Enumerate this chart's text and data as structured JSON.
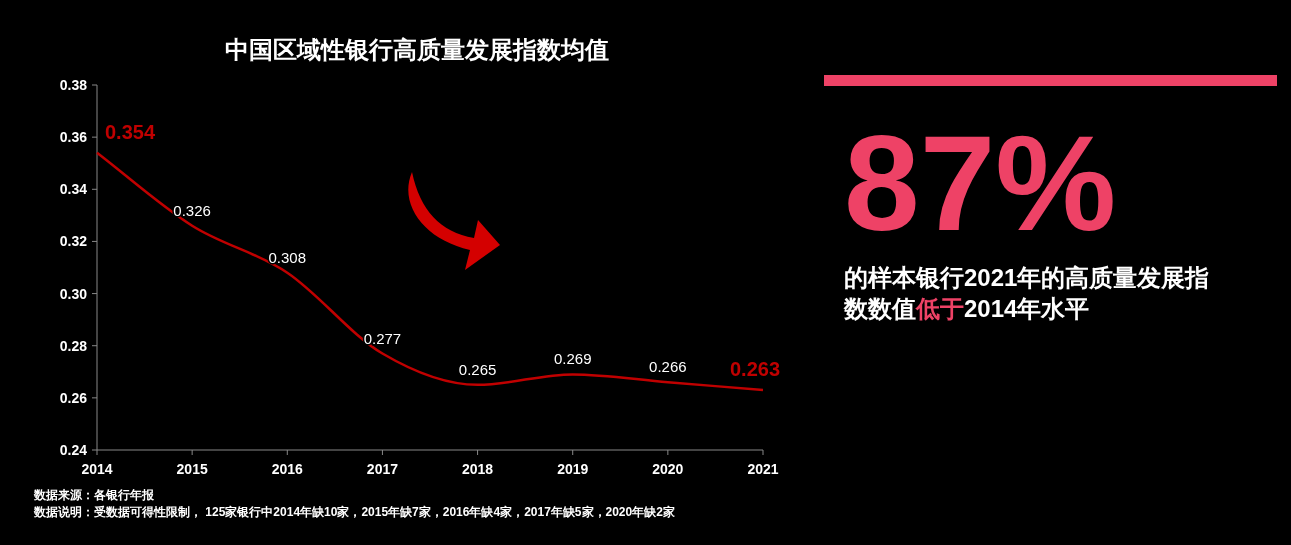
{
  "chart_data": [
    {
      "type": "line",
      "title": "中国区域性银行高质量发展指数均值",
      "x": [
        2014,
        2015,
        2016,
        2017,
        2018,
        2019,
        2020,
        2021
      ],
      "series": [
        {
          "color": "#c00000",
          "values": [
            0.354,
            0.326,
            0.308,
            0.277,
            0.265,
            0.269,
            0.266,
            0.263
          ]
        }
      ],
      "xlim": [
        2014,
        2021
      ],
      "xticks": [
        2014,
        2015,
        2016,
        2017,
        2018,
        2019,
        2020,
        2021
      ],
      "ylim": [
        0.24,
        0.38
      ],
      "yticks": [
        0.24,
        0.26,
        0.28,
        {
          "value": 0.3,
          "label": "0.30"
        },
        0.32,
        0.34,
        0.36,
        0.38
      ],
      "data_labels": true,
      "grid": false,
      "marker": "none",
      "line_style": "solid",
      "annotations": [
        "数据来源：各银行年报",
        "数据说明：受数据可得性限制， 125家银行中2014年缺10家，2015年缺7家，2016年缺4家，2017年缺5家，2020年缺2家"
      ]
    },
    {
      "type": "other",
      "title": "87%",
      "annotations": [
        "的样本银行2021年的高质量发展指数数值",
        "低于",
        "2014年水平"
      ]
    }
  ]
}
